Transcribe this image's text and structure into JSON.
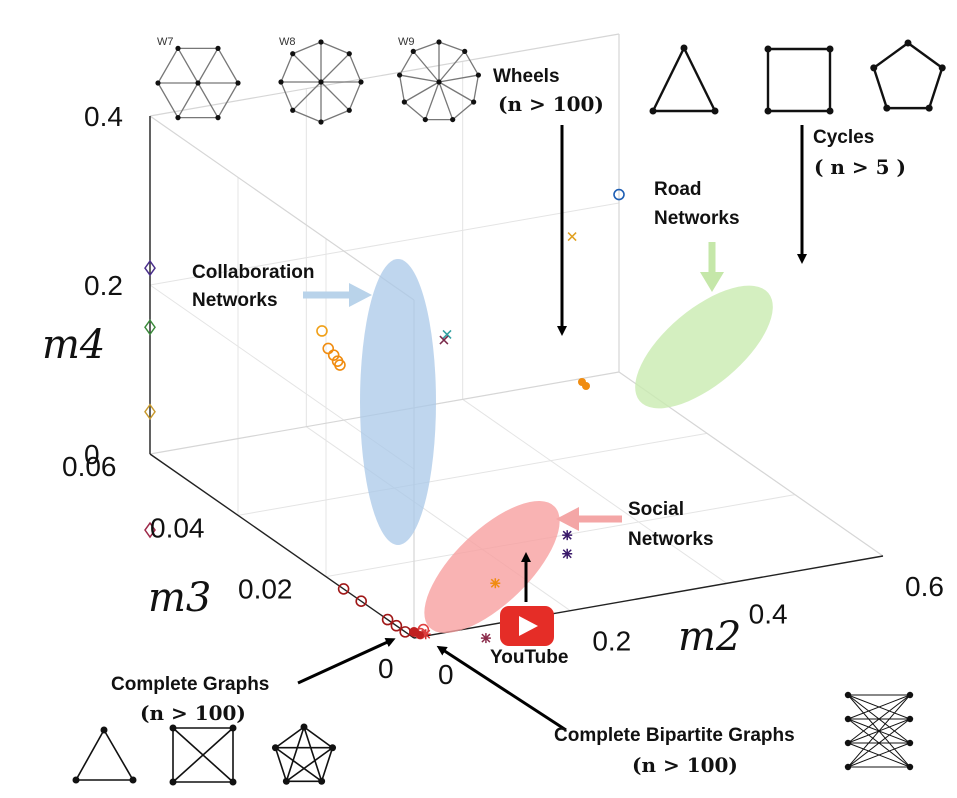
{
  "chart_data": {
    "type": "scatter3d",
    "xlabel": "m2",
    "ylabel": "m3",
    "zlabel": "m4",
    "xlim": [
      0,
      0.6
    ],
    "ylim": [
      0,
      0.06
    ],
    "zlim": [
      0,
      0.4
    ],
    "xticks": [
      "0",
      "0.2",
      "0.4",
      "0.6"
    ],
    "yticks": [
      "0",
      "0.02",
      "0.04",
      "0.06"
    ],
    "zticks": [
      "0",
      "0.2",
      "0.4"
    ],
    "grid": true,
    "series": [
      {
        "marker": "diamond",
        "points": [
          {
            "x": 0.0,
            "y": 0.06,
            "z": 0.22,
            "color": "#4b2f8c"
          },
          {
            "x": 0.0,
            "y": 0.06,
            "z": 0.15,
            "color": "#3a8a3a"
          },
          {
            "x": 0.0,
            "y": 0.06,
            "z": 0.05,
            "color": "#c99a2e"
          },
          {
            "x": 0.0,
            "y": 0.06,
            "z": -0.09,
            "color": "#9e2a4a"
          }
        ]
      },
      {
        "marker": "circle",
        "points": [
          {
            "x": 0.22,
            "y": 0.06,
            "z": 0.11,
            "color": "#f0a018"
          },
          {
            "x": 0.228,
            "y": 0.06,
            "z": 0.088,
            "color": "#f08c10"
          },
          {
            "x": 0.235,
            "y": 0.06,
            "z": 0.079,
            "color": "#f08c10"
          },
          {
            "x": 0.24,
            "y": 0.06,
            "z": 0.071,
            "color": "#f08c10"
          },
          {
            "x": 0.243,
            "y": 0.06,
            "z": 0.066,
            "color": "#f08c10"
          }
        ]
      },
      {
        "marker": "circle",
        "points": [
          {
            "x": 0.6,
            "y": 0.06,
            "z": 0.21,
            "color": "#1f5fb4"
          }
        ]
      },
      {
        "marker": "cross",
        "points": [
          {
            "x": 0.54,
            "y": 0.06,
            "z": 0.17,
            "color": "#e0a020"
          },
          {
            "x": 0.38,
            "y": 0.06,
            "z": 0.08,
            "color": "#30a0a0"
          },
          {
            "x": 0.376,
            "y": 0.06,
            "z": 0.074,
            "color": "#7a2a4a"
          }
        ]
      },
      {
        "marker": "star",
        "points": [
          {
            "x": 0.196,
            "y": 0.0,
            "z": 0.09,
            "color": "#3a1a6a"
          },
          {
            "x": 0.196,
            "y": 0.0,
            "z": 0.068,
            "color": "#3a1a6a"
          },
          {
            "x": 0.104,
            "y": 0.0,
            "z": 0.048,
            "color": "#f08c10"
          },
          {
            "x": 0.124,
            "y": 0.0,
            "z": -0.01,
            "color": "#5a7ab4"
          },
          {
            "x": 0.092,
            "y": 0.0,
            "z": -0.015,
            "color": "#8a2a4a"
          },
          {
            "x": 0.015,
            "y": 0.0,
            "z": 0.002,
            "color": "#d03030"
          }
        ]
      },
      {
        "marker": "circle",
        "points": [
          {
            "x": 0.0,
            "y": 0.016,
            "z": 0.0,
            "color": "#a01818"
          },
          {
            "x": 0.0,
            "y": 0.012,
            "z": 0.0,
            "color": "#a01818"
          },
          {
            "x": 0.0,
            "y": 0.006,
            "z": 0.0,
            "color": "#a01818"
          },
          {
            "x": 0.0,
            "y": 0.004,
            "z": 0.0,
            "color": "#a01818"
          },
          {
            "x": 0.0,
            "y": 0.002,
            "z": 0.0,
            "color": "#a01818"
          },
          {
            "x": 0.008,
            "y": 0.0,
            "z": 0.004,
            "color": "#e04040"
          },
          {
            "x": 0.012,
            "y": 0.0,
            "z": 0.008,
            "color": "#e04040"
          }
        ]
      }
    ]
  },
  "annotations": {
    "wheels": {
      "label": "Wheels",
      "condition": "(n > 100)"
    },
    "cycles": {
      "label": "Cycles",
      "condition": "( n > 5 )"
    },
    "road": {
      "line1": "Road",
      "line2": "Networks"
    },
    "collaboration": {
      "line1": "Collaboration",
      "line2": "Networks"
    },
    "social": {
      "line1": "Social",
      "line2": "Networks"
    },
    "youtube": {
      "label": "YouTube"
    },
    "complete": {
      "label": "Complete Graphs",
      "condition": "(n > 100)"
    },
    "bipartite": {
      "label": "Complete Bipartite Graphs",
      "condition": "(n > 100)"
    },
    "wheel_icons": [
      "W7",
      "W8",
      "W9"
    ]
  },
  "colors": {
    "collaboration_region": "#a9c8e8",
    "road_region": "#c9ebb0",
    "social_region": "#f7a0a0",
    "youtube": "#e52d27"
  }
}
